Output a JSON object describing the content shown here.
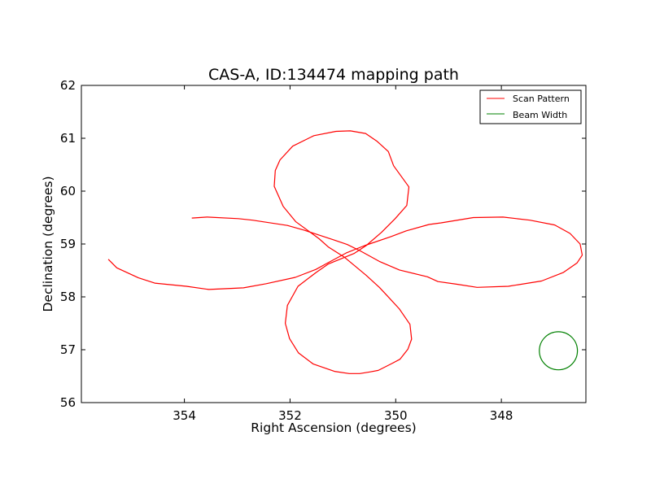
{
  "chart_data": {
    "type": "line",
    "title": "CAS-A, ID:134474 mapping path",
    "xlabel": "Right Ascension (degrees)",
    "ylabel": "Declination (degrees)",
    "xlim": [
      355.95,
      346.4
    ],
    "ylim": [
      56,
      62
    ],
    "x_reversed": true,
    "xticks": [
      354,
      352,
      350,
      348
    ],
    "xtick_labels": [
      "354",
      "352",
      "350",
      "348"
    ],
    "yticks": [
      56,
      57,
      58,
      59,
      60,
      61,
      62
    ],
    "ytick_labels": [
      "56",
      "57",
      "58",
      "59",
      "60",
      "61",
      "62"
    ],
    "grid": false,
    "legend": {
      "placement": "upper right"
    },
    "series": [
      {
        "name": "Scan Pattern",
        "color": "#ff0000",
        "points": [
          [
            353.86,
            59.49
          ],
          [
            353.57,
            59.51
          ],
          [
            352.98,
            59.48
          ],
          [
            352.71,
            59.45
          ],
          [
            352.05,
            59.35
          ],
          [
            351.73,
            59.26
          ],
          [
            351.18,
            59.08
          ],
          [
            350.92,
            58.99
          ],
          [
            350.67,
            58.87
          ],
          [
            350.31,
            58.67
          ],
          [
            349.93,
            58.51
          ],
          [
            349.4,
            58.38
          ],
          [
            349.2,
            58.29
          ],
          [
            348.85,
            58.24
          ],
          [
            348.46,
            58.18
          ],
          [
            347.87,
            58.2
          ],
          [
            347.24,
            58.3
          ],
          [
            346.83,
            58.46
          ],
          [
            346.57,
            58.64
          ],
          [
            346.47,
            58.79
          ],
          [
            346.51,
            59.0
          ],
          [
            346.7,
            59.2
          ],
          [
            346.99,
            59.36
          ],
          [
            347.46,
            59.45
          ],
          [
            347.97,
            59.51
          ],
          [
            348.53,
            59.5
          ],
          [
            349.14,
            59.4
          ],
          [
            349.37,
            59.37
          ],
          [
            349.8,
            59.25
          ],
          [
            350.09,
            59.14
          ],
          [
            350.59,
            58.97
          ],
          [
            350.94,
            58.83
          ],
          [
            351.29,
            58.64
          ],
          [
            351.51,
            58.52
          ],
          [
            351.9,
            58.37
          ],
          [
            352.45,
            58.25
          ],
          [
            352.88,
            58.17
          ],
          [
            353.12,
            58.16
          ],
          [
            353.54,
            58.14
          ],
          [
            353.96,
            58.2
          ],
          [
            354.56,
            58.26
          ],
          [
            354.87,
            58.36
          ],
          [
            355.28,
            58.55
          ],
          [
            355.44,
            58.71
          ]
        ]
      },
      {
        "name": "Scan Pattern",
        "color": "#ff0000",
        "points": [
          [
            350.04,
            60.48
          ],
          [
            349.75,
            60.08
          ],
          [
            349.79,
            59.73
          ],
          [
            350.01,
            59.48
          ],
          [
            350.27,
            59.22
          ],
          [
            350.56,
            58.97
          ],
          [
            350.79,
            58.82
          ],
          [
            351.28,
            58.62
          ],
          [
            351.51,
            58.46
          ],
          [
            351.85,
            58.2
          ],
          [
            352.05,
            57.84
          ],
          [
            352.09,
            57.5
          ],
          [
            352.01,
            57.21
          ],
          [
            351.84,
            56.94
          ],
          [
            351.56,
            56.73
          ],
          [
            351.16,
            56.59
          ],
          [
            350.88,
            56.55
          ],
          [
            350.68,
            56.55
          ],
          [
            350.49,
            56.58
          ],
          [
            350.33,
            56.61
          ],
          [
            350.07,
            56.74
          ],
          [
            349.92,
            56.82
          ],
          [
            349.77,
            57.01
          ],
          [
            349.7,
            57.2
          ],
          [
            349.73,
            57.48
          ],
          [
            349.93,
            57.77
          ],
          [
            350.16,
            58.02
          ],
          [
            350.31,
            58.18
          ],
          [
            350.56,
            58.41
          ],
          [
            350.8,
            58.61
          ],
          [
            350.97,
            58.75
          ],
          [
            351.27,
            58.94
          ],
          [
            351.45,
            59.1
          ],
          [
            351.89,
            59.42
          ],
          [
            352.13,
            59.71
          ],
          [
            352.3,
            60.09
          ],
          [
            352.28,
            60.39
          ],
          [
            352.19,
            60.59
          ],
          [
            351.95,
            60.85
          ],
          [
            351.55,
            61.05
          ],
          [
            351.13,
            61.13
          ],
          [
            350.86,
            61.14
          ],
          [
            350.57,
            61.09
          ],
          [
            350.35,
            60.94
          ],
          [
            350.14,
            60.75
          ],
          [
            350.04,
            60.48
          ]
        ]
      },
      {
        "name": "Beam Width",
        "color": "#008000",
        "center": [
          346.92,
          56.98
        ],
        "radius": 0.36
      }
    ]
  }
}
